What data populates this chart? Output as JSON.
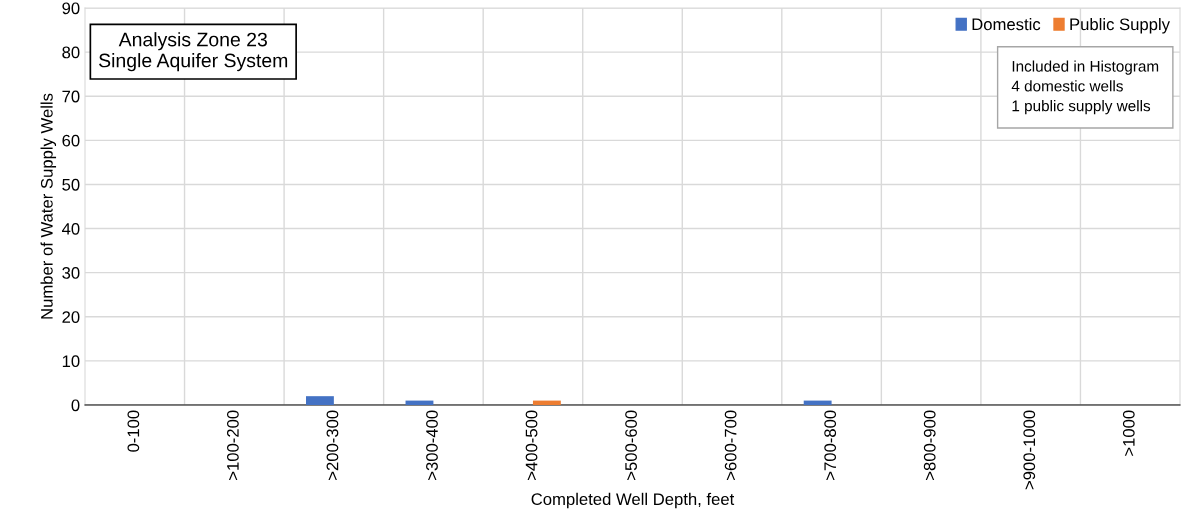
{
  "chart_data": {
    "type": "bar",
    "categories": [
      "0-100",
      ">100-200",
      ">200-300",
      ">300-400",
      ">400-500",
      ">500-600",
      ">600-700",
      ">700-800",
      ">800-900",
      ">900-1000",
      ">1000"
    ],
    "series": [
      {
        "name": "Domestic",
        "color": "#4472c4",
        "values": [
          0,
          0,
          2,
          1,
          0,
          0,
          0,
          1,
          0,
          0,
          0
        ]
      },
      {
        "name": "Public Supply",
        "color": "#ed7d31",
        "values": [
          0,
          0,
          0,
          0,
          1,
          0,
          0,
          0,
          0,
          0,
          0
        ]
      }
    ],
    "xlabel": "Completed Well Depth, feet",
    "ylabel": "Number of Water Supply Wells",
    "ylim": [
      0,
      90
    ],
    "yticks": [
      0,
      10,
      20,
      30,
      40,
      50,
      60,
      70,
      80,
      90
    ],
    "grid": true,
    "legend": "top right",
    "annotations": [
      "Analysis Zone 23\nSingle Aquifer System",
      "Included in Histogram\n4 domestic wells\n1 public supply wells"
    ]
  }
}
